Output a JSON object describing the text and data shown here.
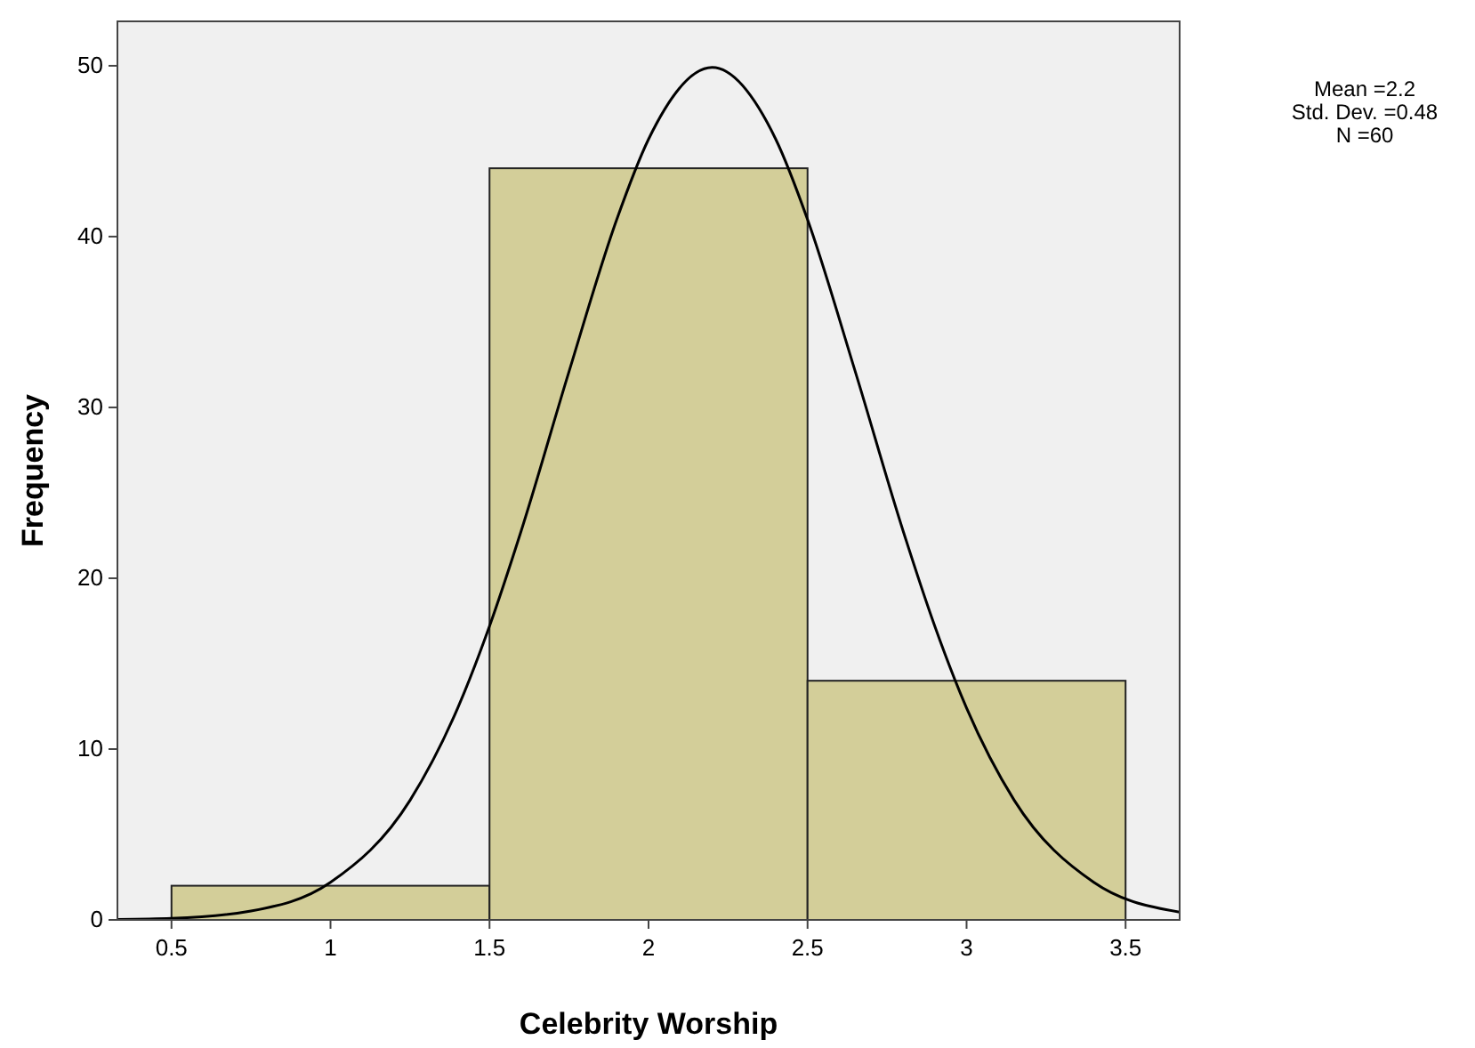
{
  "chart_data": {
    "type": "histogram",
    "xlabel": "Celebrity Worship",
    "ylabel": "Frequency",
    "bins": [
      0.5,
      1.5,
      2.5,
      3.5
    ],
    "values": [
      2,
      44,
      14
    ],
    "color": "#d3ce99",
    "xlim": [
      0.33,
      3.67
    ],
    "xticks": [
      0.5,
      1,
      1.5,
      2,
      2.5,
      3,
      3.5
    ],
    "ylim": [
      0,
      52.6
    ],
    "yticks": [
      0,
      10,
      20,
      30,
      40,
      50
    ],
    "grid": false,
    "series": [
      {
        "type": "line",
        "color": "#000000",
        "marker": "none",
        "x": [
          0.33,
          0.5,
          0.75,
          1.0,
          1.25,
          1.4,
          1.5,
          1.6,
          1.75,
          1.9,
          2.0,
          2.2,
          2.4,
          2.5,
          2.65,
          2.8,
          2.9,
          3.0,
          3.15,
          3.4,
          3.67
        ],
        "values": [
          0.03,
          0.09,
          0.52,
          2.2,
          7,
          12.4,
          17.2,
          22.8,
          32.1,
          41,
          45.7,
          49.9,
          45.7,
          41,
          32.1,
          22.8,
          17.2,
          12.4,
          7,
          2.2,
          0.46
        ]
      }
    ],
    "annotations": [
      "Mean =2.2",
      "Std. Dev. =0.48",
      "N =60"
    ]
  }
}
